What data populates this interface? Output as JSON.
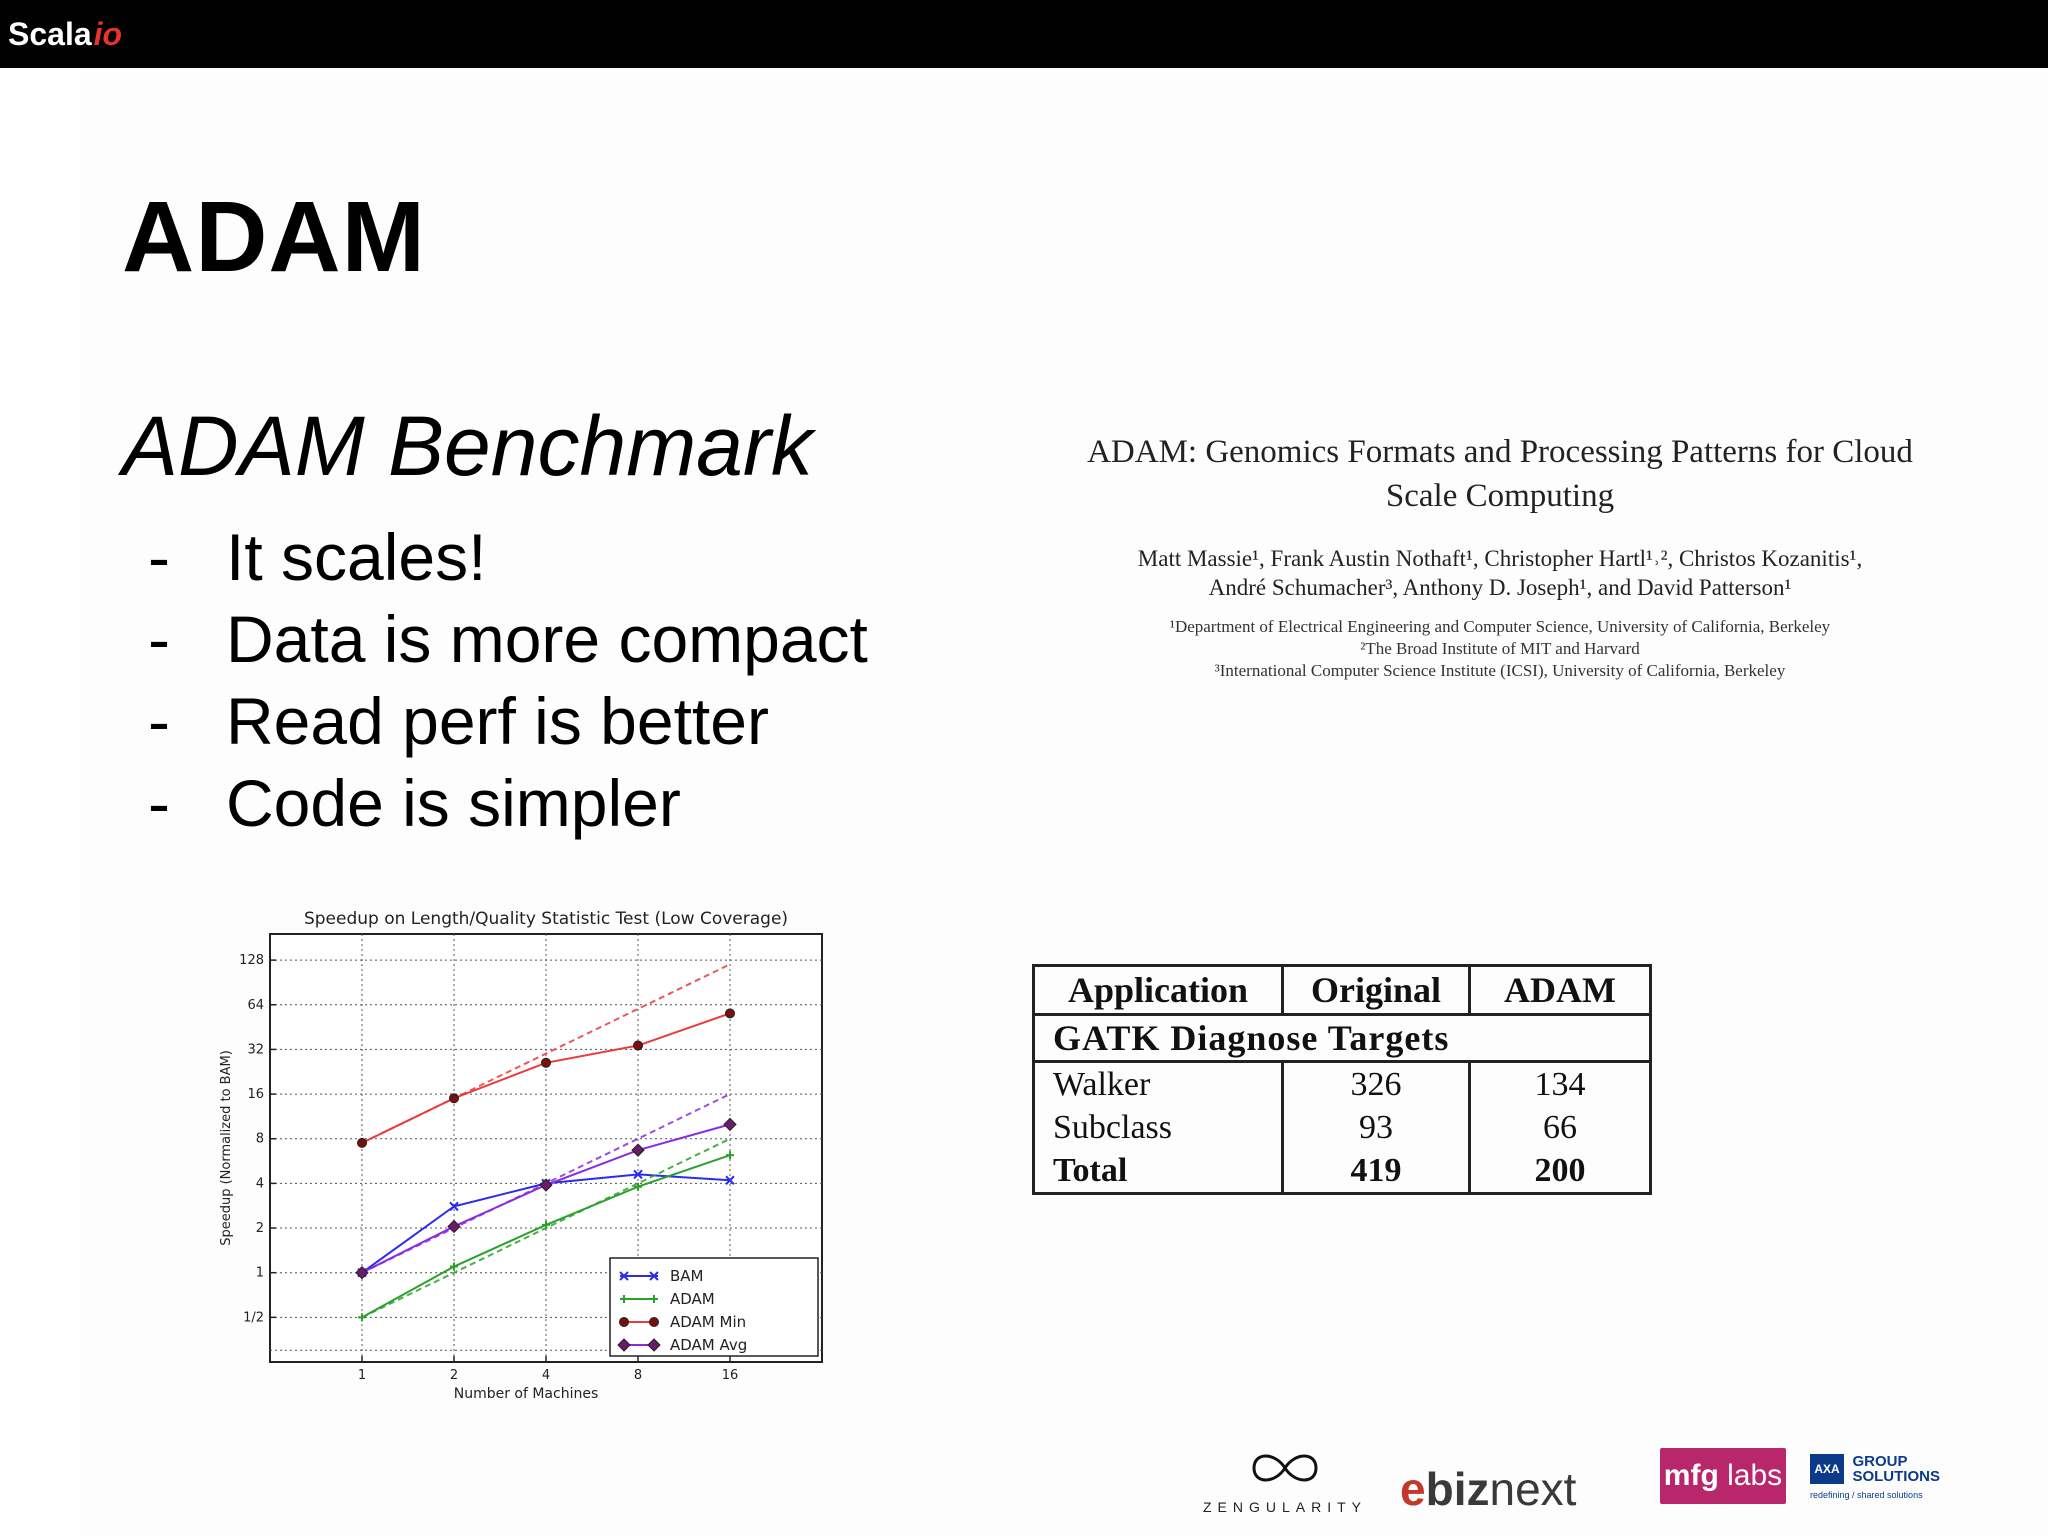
{
  "topbar": {
    "brand_main": "Scala",
    "brand_accent": "io"
  },
  "slide": {
    "title": "ADAM",
    "subtitle": "ADAM Benchmark",
    "bullets": [
      {
        "dash": "-",
        "text": "It scales!"
      },
      {
        "dash": "-",
        "text": "Data is more compact"
      },
      {
        "dash": "-",
        "text": "Read perf is better"
      },
      {
        "dash": "-",
        "text": "Code is simpler"
      }
    ]
  },
  "paper": {
    "title_line1": "ADAM: Genomics Formats and Processing Patterns for Cloud",
    "title_line2": "Scale Computing",
    "authors_line1": "Matt Massie¹, Frank Austin Nothaft¹, Christopher Hartl¹˒², Christos Kozanitis¹,",
    "authors_line2": "André Schumacher³, Anthony D. Joseph¹, and David Patterson¹",
    "aff1": "¹Department of Electrical Engineering and Computer Science, University of California, Berkeley",
    "aff2": "²The Broad Institute of MIT and Harvard",
    "aff3": "³International Computer Science Institute (ICSI), University of California, Berkeley"
  },
  "table": {
    "headers": [
      "Application",
      "Original",
      "ADAM"
    ],
    "section": "GATK Diagnose Targets",
    "rows": [
      {
        "app": "Walker",
        "original": "326",
        "adam": "134"
      },
      {
        "app": "Subclass",
        "original": "93",
        "adam": "66"
      },
      {
        "app": "Total",
        "original": "419",
        "adam": "200"
      }
    ]
  },
  "chart_data": {
    "type": "line",
    "title": "Speedup on Length/Quality Statistic Test (Low Coverage)",
    "xlabel": "Number of Machines",
    "ylabel": "Speedup (Normalized to BAM)",
    "x": [
      1,
      2,
      4,
      8,
      16
    ],
    "x_ticks": [
      "1",
      "2",
      "4",
      "8",
      "16"
    ],
    "y_scale": "log2",
    "y_ticks": [
      "1/2",
      "1",
      "2",
      "4",
      "8",
      "16",
      "32",
      "64",
      "128"
    ],
    "ylim": [
      0.25,
      192
    ],
    "grid": true,
    "legend_position": "lower-right",
    "series": [
      {
        "name": "BAM",
        "color": "#2b2bf0",
        "marker": "x",
        "values": [
          1,
          2.8,
          4,
          4.6,
          4.2
        ]
      },
      {
        "name": "ADAM",
        "color": "#2ca02c",
        "marker": "+",
        "values": [
          0.5,
          1.1,
          2.1,
          3.8,
          6.2
        ]
      },
      {
        "name": "ADAM Min",
        "color": "#e83b3b",
        "marker": "o",
        "values": [
          7.5,
          15,
          26,
          34,
          56
        ]
      },
      {
        "name": "ADAM Avg",
        "color": "#8a2be2",
        "marker": "D",
        "values": [
          1,
          2.05,
          3.9,
          6.7,
          10
        ]
      }
    ]
  },
  "logos": {
    "zen_word": "ZENGULARITY",
    "ebiz_e": "e",
    "ebiz_biz": "biz",
    "ebiz_next": "next",
    "mfg_main": "mfg",
    "mfg_labs": "labs",
    "axa_box": "AXA",
    "axa_line1": "GROUP",
    "axa_line2": "SOLUTIONS",
    "axa_tag": "redefining / shared solutions"
  }
}
